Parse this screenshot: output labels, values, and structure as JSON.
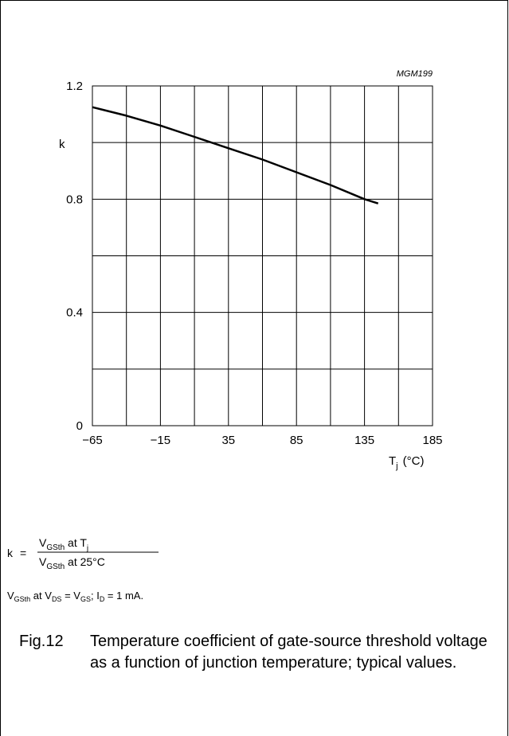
{
  "chart_data": {
    "type": "line",
    "code": "MGM199",
    "ylabel": "k",
    "xlabel_main": "T",
    "xlabel_sub": "j",
    "xlabel_unit": "(°C)",
    "xlim": [
      -65,
      185
    ],
    "ylim": [
      0,
      1.2
    ],
    "x_ticks": [
      -65,
      -15,
      35,
      85,
      135,
      185
    ],
    "x_tick_labels": [
      "−65",
      "−15",
      "35",
      "85",
      "135",
      "185"
    ],
    "y_ticks": [
      0,
      0.4,
      0.8,
      1.2
    ],
    "y_tick_labels": [
      "0",
      "0.4",
      "0.8",
      "1.2"
    ],
    "grid": true,
    "series": [
      {
        "x": [
          -65,
          -40,
          -15,
          10,
          35,
          60,
          85,
          110,
          135,
          145
        ],
        "y": [
          1.125,
          1.095,
          1.06,
          1.02,
          0.98,
          0.94,
          0.895,
          0.85,
          0.8,
          0.785
        ]
      }
    ]
  },
  "formula": {
    "lhs": "k",
    "eq": "=",
    "num_v": "V",
    "num_sub": "GSth",
    "num_mid": " at T",
    "num_tsub": "j",
    "den_v": "V",
    "den_sub": "GSth",
    "den_rest": " at 25°C"
  },
  "conditions": {
    "v1": "V",
    "s1": "GSth",
    "t1": " at V",
    "s2": "DS",
    "t2": " = V",
    "s3": "GS",
    "t3": "; I",
    "s4": "D",
    "t4": " = 1 mA."
  },
  "caption": {
    "number": "Fig.12",
    "text": "Temperature coefficient of gate-source threshold voltage as a function of junction temperature; typical values."
  }
}
